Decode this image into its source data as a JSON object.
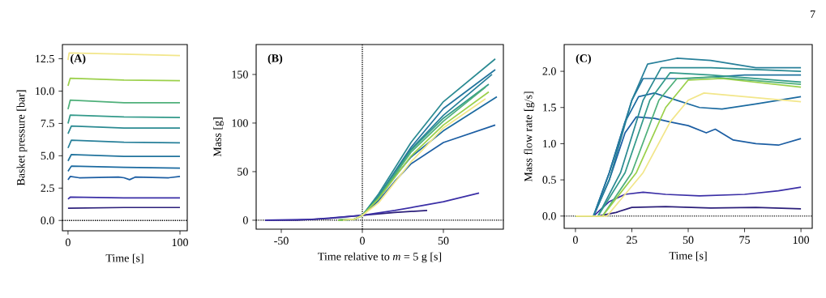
{
  "chart_data": [
    {
      "type": "line",
      "ylabel": "Basket pressure [bar]",
      "xlabel": "Time [s]",
      "annotations": [
        "(A)"
      ],
      "xlim": [
        -5,
        106.5
      ],
      "ylim": [
        -0.8,
        13.6
      ],
      "xticks": [
        0,
        100
      ],
      "yticks": [
        {
          "value": 0,
          "label": "0.0"
        },
        {
          "value": 2.5,
          "label": "2.5"
        },
        {
          "value": 5,
          "label": "5.0"
        },
        {
          "value": 7.5,
          "label": "7.5"
        },
        {
          "value": 10,
          "label": "10.0"
        },
        {
          "value": 12.5,
          "label": "12.5"
        }
      ],
      "ref_lines": [
        {
          "axis": "y",
          "value": 0,
          "color": "#000000",
          "line_style": "dotted"
        }
      ],
      "series": [
        {
          "color": "#2c1f7a",
          "x": [
            0,
            50,
            100
          ],
          "values": [
            0.95,
            1.0,
            1.0
          ]
        },
        {
          "color": "#3b2fa6",
          "x": [
            0,
            2,
            50,
            100
          ],
          "values": [
            1.65,
            1.8,
            1.75,
            1.75
          ]
        },
        {
          "color": "#1c5ea3",
          "x": [
            0,
            2,
            10,
            45,
            50,
            55,
            60,
            90,
            100
          ],
          "values": [
            3.15,
            3.4,
            3.3,
            3.35,
            3.3,
            3.15,
            3.35,
            3.3,
            3.4
          ]
        },
        {
          "color": "#1b6aa0",
          "x": [
            0,
            3,
            50,
            100
          ],
          "values": [
            3.8,
            4.2,
            4.1,
            4.05
          ]
        },
        {
          "color": "#22749d",
          "x": [
            0,
            3,
            50,
            100
          ],
          "values": [
            4.6,
            5.1,
            4.95,
            4.95
          ]
        },
        {
          "color": "#28809a",
          "x": [
            0,
            3,
            50,
            100
          ],
          "values": [
            5.6,
            6.2,
            6.05,
            6.0
          ]
        },
        {
          "color": "#2b8a92",
          "x": [
            0,
            3,
            50,
            100
          ],
          "values": [
            6.7,
            7.3,
            7.15,
            7.15
          ]
        },
        {
          "color": "#339a8a",
          "x": [
            0,
            2,
            50,
            100
          ],
          "values": [
            7.5,
            8.15,
            8.0,
            7.95
          ]
        },
        {
          "color": "#4fb07a",
          "x": [
            0,
            2,
            50,
            100
          ],
          "values": [
            8.6,
            9.3,
            9.1,
            9.1
          ]
        },
        {
          "color": "#9bd04a",
          "x": [
            0,
            2,
            50,
            100
          ],
          "values": [
            10.4,
            11.0,
            10.85,
            10.8
          ]
        },
        {
          "color": "#f2e68a",
          "x": [
            0,
            1,
            50,
            100
          ],
          "values": [
            12.4,
            12.95,
            12.85,
            12.75
          ]
        }
      ]
    },
    {
      "type": "line",
      "ylabel": "Mass [g]",
      "xlabel": "Time relative to *m* = 5 g [s]",
      "annotations": [
        "(B)"
      ],
      "xlim": [
        -65.5,
        87
      ],
      "ylim": [
        -9.2,
        180.8
      ],
      "xticks": [
        -50,
        0,
        50
      ],
      "yticks": [
        0,
        50,
        100,
        150
      ],
      "ref_lines": [
        {
          "axis": "y",
          "value": 0,
          "color": "#000000",
          "line_style": "dotted"
        },
        {
          "axis": "x",
          "value": 0,
          "color": "#000000",
          "line_style": "dotted"
        }
      ],
      "series": [
        {
          "color": "#2c1f7a",
          "x": [
            -60,
            -40,
            -20,
            0,
            20,
            40
          ],
          "values": [
            0,
            0,
            2,
            5,
            8,
            10
          ]
        },
        {
          "color": "#3b2fa6",
          "x": [
            -60,
            -30,
            0,
            20,
            50,
            72
          ],
          "values": [
            0,
            1,
            5,
            10,
            19,
            28
          ]
        },
        {
          "color": "#1c5ea3",
          "x": [
            -15,
            -5,
            0,
            10,
            20,
            30,
            50,
            82
          ],
          "values": [
            0,
            1,
            5,
            20,
            40,
            58,
            80,
            98
          ]
        },
        {
          "color": "#1b6aa0",
          "x": [
            -15,
            -5,
            0,
            10,
            20,
            30,
            50,
            83
          ],
          "values": [
            0,
            1,
            5,
            22,
            45,
            65,
            92,
            127
          ]
        },
        {
          "color": "#22749d",
          "x": [
            -15,
            -5,
            0,
            10,
            30,
            50,
            82
          ],
          "values": [
            0,
            1,
            5,
            25,
            75,
            115,
            155
          ]
        },
        {
          "color": "#28809a",
          "x": [
            -15,
            -5,
            0,
            10,
            30,
            50,
            80
          ],
          "values": [
            0,
            1,
            5,
            25,
            73,
            108,
            150
          ]
        },
        {
          "color": "#2b8a92",
          "x": [
            -15,
            -5,
            0,
            10,
            30,
            50,
            82
          ],
          "values": [
            0,
            1,
            5,
            27,
            80,
            122,
            166
          ]
        },
        {
          "color": "#339a8a",
          "x": [
            -15,
            -5,
            0,
            10,
            30,
            50,
            78
          ],
          "values": [
            0,
            1,
            5,
            24,
            72,
            105,
            140
          ]
        },
        {
          "color": "#4fb07a",
          "x": [
            -15,
            -5,
            0,
            10,
            30,
            50,
            76
          ],
          "values": [
            0,
            1,
            5,
            23,
            70,
            102,
            137
          ]
        },
        {
          "color": "#9bd04a",
          "x": [
            -15,
            -5,
            0,
            10,
            30,
            50,
            78
          ],
          "values": [
            0,
            1,
            5,
            22,
            66,
            98,
            132
          ]
        },
        {
          "color": "#f2e68a",
          "x": [
            -12,
            -5,
            0,
            10,
            30,
            50,
            76
          ],
          "values": [
            0,
            1,
            5,
            18,
            60,
            95,
            125
          ]
        }
      ]
    },
    {
      "type": "line",
      "ylabel": "Mass flow rate [g/s]",
      "xlabel": "Time [s]",
      "annotations": [
        "(C)",
        "7"
      ],
      "xlim": [
        -5,
        105
      ],
      "ylim": [
        -0.17,
        2.37
      ],
      "xticks": [
        0,
        25,
        50,
        75,
        100
      ],
      "yticks": [
        {
          "value": 0,
          "label": "0.0"
        },
        {
          "value": 0.5,
          "label": "0.5"
        },
        {
          "value": 1,
          "label": "1.0"
        },
        {
          "value": 1.5,
          "label": "1.5"
        },
        {
          "value": 2,
          "label": "2.0"
        }
      ],
      "ref_lines": [
        {
          "axis": "y",
          "value": 0,
          "color": "#000000",
          "line_style": "dotted"
        }
      ],
      "series": [
        {
          "color": "#2c1f7a",
          "x": [
            0,
            10,
            18,
            25,
            40,
            60,
            80,
            100
          ],
          "values": [
            0,
            0,
            0.05,
            0.12,
            0.13,
            0.11,
            0.12,
            0.1
          ]
        },
        {
          "color": "#3b2fa6",
          "x": [
            0,
            8,
            15,
            22,
            30,
            40,
            55,
            75,
            90,
            100
          ],
          "values": [
            0,
            0,
            0.2,
            0.3,
            0.33,
            0.3,
            0.28,
            0.3,
            0.35,
            0.4
          ]
        },
        {
          "color": "#1c5ea3",
          "x": [
            0,
            8,
            15,
            22,
            27,
            35,
            42,
            50,
            58,
            62,
            70,
            80,
            90,
            100
          ],
          "values": [
            0,
            0,
            0.5,
            1.15,
            1.37,
            1.35,
            1.3,
            1.25,
            1.15,
            1.2,
            1.05,
            1.0,
            0.98,
            1.07
          ]
        },
        {
          "color": "#1b6aa0",
          "x": [
            0,
            8,
            15,
            22,
            28,
            35,
            45,
            55,
            65,
            80,
            100
          ],
          "values": [
            0,
            0,
            0.6,
            1.3,
            1.65,
            1.7,
            1.6,
            1.5,
            1.48,
            1.55,
            1.65
          ]
        },
        {
          "color": "#22749d",
          "x": [
            0,
            8,
            15,
            25,
            30,
            50,
            75,
            100
          ],
          "values": [
            0,
            0,
            0.6,
            1.6,
            1.9,
            1.9,
            1.95,
            1.95
          ]
        },
        {
          "color": "#28809a",
          "x": [
            0,
            8,
            15,
            25,
            32,
            45,
            60,
            80,
            100
          ],
          "values": [
            0,
            0,
            0.5,
            1.6,
            2.1,
            2.18,
            2.15,
            2.05,
            2.05
          ]
        },
        {
          "color": "#2b8a92",
          "x": [
            0,
            10,
            20,
            30,
            38,
            60,
            100
          ],
          "values": [
            0,
            0,
            0.6,
            1.6,
            2.05,
            2.05,
            2.0
          ]
        },
        {
          "color": "#339a8a",
          "x": [
            0,
            10,
            22,
            33,
            42,
            60,
            100
          ],
          "values": [
            0,
            0,
            0.6,
            1.6,
            1.98,
            1.95,
            1.85
          ]
        },
        {
          "color": "#4fb07a",
          "x": [
            0,
            12,
            25,
            37,
            45,
            60,
            100
          ],
          "values": [
            0,
            0,
            0.6,
            1.6,
            1.9,
            1.92,
            1.82
          ]
        },
        {
          "color": "#9bd04a",
          "x": [
            0,
            12,
            27,
            40,
            50,
            65,
            100
          ],
          "values": [
            0,
            0,
            0.6,
            1.5,
            1.88,
            1.9,
            1.78
          ]
        },
        {
          "color": "#f2e68a",
          "x": [
            0,
            14,
            30,
            42,
            50,
            57,
            75,
            100
          ],
          "values": [
            0,
            0,
            0.6,
            1.3,
            1.6,
            1.7,
            1.65,
            1.58
          ]
        }
      ]
    }
  ]
}
